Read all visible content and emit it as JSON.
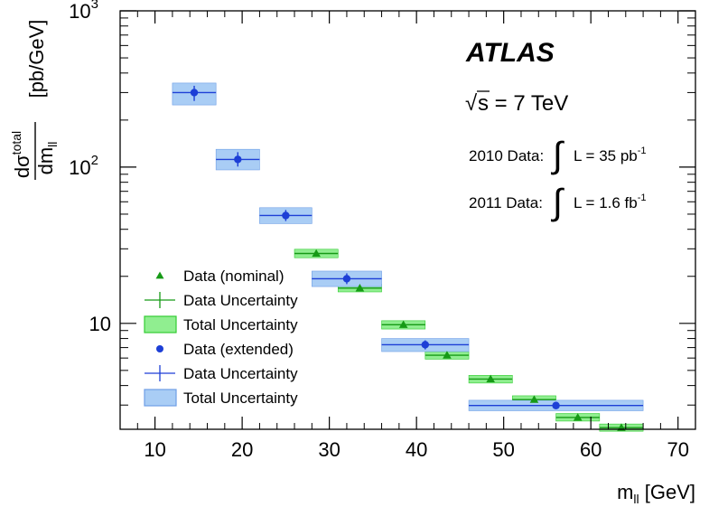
{
  "chart_data": {
    "type": "scatter",
    "title": "",
    "xlabel": "m",
    "xlabel_sub": "ll",
    "xlabel_unit": " [GeV]",
    "ylabel_num": "dσ",
    "ylabel_num_sup": "total",
    "ylabel_den": "dm",
    "ylabel_den_sub": "ll",
    "ylabel_unit": "[pb/GeV]",
    "xlim": [
      6,
      72
    ],
    "ylim": [
      2.1,
      1000
    ],
    "yscale": "log",
    "grid": false,
    "x_ticks": [
      {
        "value": 10,
        "label": "10"
      },
      {
        "value": 20,
        "label": "20"
      },
      {
        "value": 30,
        "label": "30"
      },
      {
        "value": 40,
        "label": "40"
      },
      {
        "value": 50,
        "label": "50"
      },
      {
        "value": 60,
        "label": "60"
      },
      {
        "value": 70,
        "label": "70"
      }
    ],
    "y_ticks": [
      {
        "value": 10,
        "base": "10",
        "exp": ""
      },
      {
        "value": 100,
        "base": "10",
        "exp": "2"
      },
      {
        "value": 1000,
        "base": "10",
        "exp": "3"
      }
    ],
    "annotations": {
      "experiment": "ATLAS",
      "energy_sqrt": "√",
      "energy_rest": "s = 7 TeV",
      "data2010_prefix": "2010 Data:",
      "data2010_lumi": "L = 35 pb",
      "data2010_exp": "-1",
      "data2011_prefix": "2011 Data:",
      "data2011_lumi": "L = 1.6 fb",
      "data2011_exp": "-1",
      "integral": "∫"
    },
    "legend_position": "bottom-left",
    "legend": [
      {
        "label": "Data (nominal)",
        "kind": "marker",
        "series": 0
      },
      {
        "label": "Data Uncertainty",
        "kind": "errbar",
        "series": 0
      },
      {
        "label": "Total Uncertainty",
        "kind": "box",
        "series": 0
      },
      {
        "label": "Data (extended)",
        "kind": "marker",
        "series": 1
      },
      {
        "label": "Data Uncertainty",
        "kind": "errbar",
        "series": 1
      },
      {
        "label": "Total Uncertainty",
        "kind": "box",
        "series": 1
      }
    ],
    "series": [
      {
        "marker": "triangle",
        "color": "#169a16",
        "band_fill": "#90ee90",
        "band_stroke": "#33cc33",
        "points": [
          {
            "x": 28.5,
            "xlo": 26,
            "xhi": 31,
            "y": 28.0,
            "ylo": 26.3,
            "yhi": 29.8
          },
          {
            "x": 33.5,
            "xlo": 31,
            "xhi": 36,
            "y": 16.8,
            "ylo": 15.9,
            "yhi": 17.8
          },
          {
            "x": 38.5,
            "xlo": 36,
            "xhi": 41,
            "y": 9.8,
            "ylo": 9.2,
            "yhi": 10.4
          },
          {
            "x": 43.5,
            "xlo": 41,
            "xhi": 46,
            "y": 6.25,
            "ylo": 5.9,
            "yhi": 6.6
          },
          {
            "x": 48.5,
            "xlo": 46,
            "xhi": 51,
            "y": 4.4,
            "ylo": 4.15,
            "yhi": 4.65
          },
          {
            "x": 53.5,
            "xlo": 51,
            "xhi": 56,
            "y": 3.25,
            "ylo": 3.07,
            "yhi": 3.44
          },
          {
            "x": 58.5,
            "xlo": 56,
            "xhi": 61,
            "y": 2.5,
            "ylo": 2.37,
            "yhi": 2.65
          },
          {
            "x": 63.5,
            "xlo": 61,
            "xhi": 66,
            "y": 2.15,
            "ylo": 2.04,
            "yhi": 2.27
          }
        ]
      },
      {
        "marker": "circle",
        "color": "#1d3fd6",
        "band_fill": "#a9cdf5",
        "band_stroke": "#6e9ee6",
        "points": [
          {
            "x": 14.5,
            "xlo": 12,
            "xhi": 17,
            "y": 300,
            "ylo": 250,
            "yhi": 345
          },
          {
            "x": 19.5,
            "xlo": 17,
            "xhi": 22,
            "y": 112,
            "ylo": 96,
            "yhi": 130
          },
          {
            "x": 25,
            "xlo": 22,
            "xhi": 28,
            "y": 49,
            "ylo": 43.5,
            "yhi": 55
          },
          {
            "x": 32,
            "xlo": 28,
            "xhi": 36,
            "y": 19.3,
            "ylo": 17.2,
            "yhi": 21.6
          },
          {
            "x": 41,
            "xlo": 36,
            "xhi": 46,
            "y": 7.3,
            "ylo": 6.6,
            "yhi": 8.0
          },
          {
            "x": 56,
            "xlo": 46,
            "xhi": 66,
            "y": 2.98,
            "ylo": 2.76,
            "yhi": 3.22
          }
        ]
      }
    ]
  }
}
